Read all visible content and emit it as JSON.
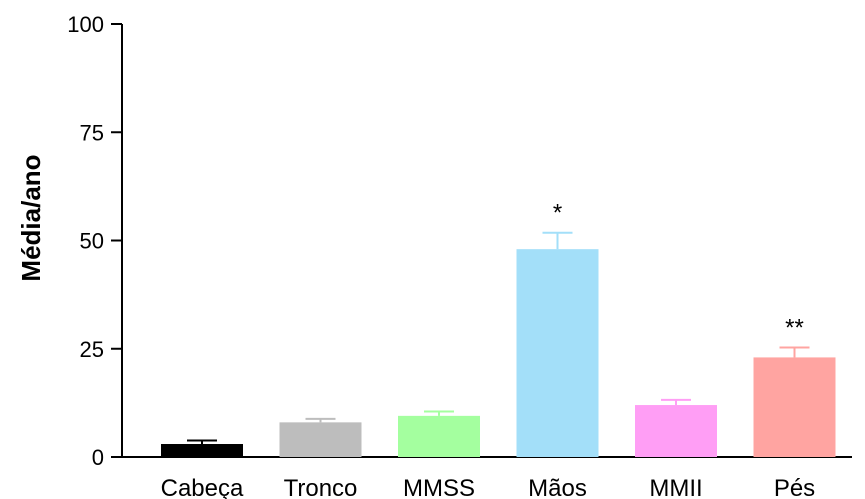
{
  "chart_data": {
    "type": "bar",
    "title": "",
    "xlabel": "",
    "ylabel": "Média/ano",
    "ylim": [
      0,
      100
    ],
    "yticks": [
      "0",
      "25",
      "50",
      "75",
      "100"
    ],
    "grid": false,
    "categories": [
      "Cabeça",
      "Tronco",
      "MMSS",
      "Mãos",
      "MMII",
      "Pés"
    ],
    "values": [
      3,
      8,
      9.5,
      48,
      12,
      23
    ],
    "errors": [
      0.8,
      0.8,
      1,
      3.8,
      1.2,
      2.3
    ],
    "annotations": [
      "",
      "",
      "",
      "*",
      "",
      "**"
    ],
    "colors": [
      "#000000",
      "#bdbdbd",
      "#a4ff9f",
      "#a3dff9",
      "#ff9ef5",
      "#ffa4a1"
    ]
  }
}
